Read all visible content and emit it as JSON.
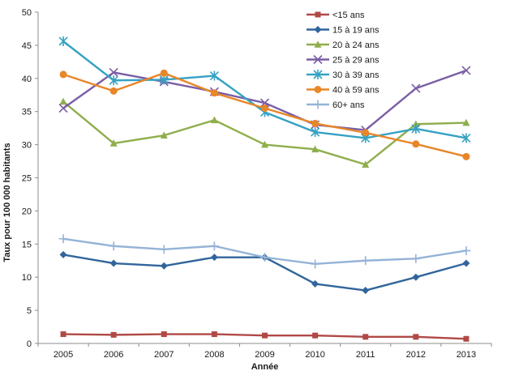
{
  "chart_data": {
    "type": "line",
    "title": "",
    "xlabel": "Année",
    "ylabel": "Taux pour 100 000 habitants",
    "x": [
      2005,
      2006,
      2007,
      2008,
      2009,
      2010,
      2011,
      2012,
      2013
    ],
    "ylim": [
      0,
      50
    ],
    "ytick_step": 5,
    "grid": false,
    "legend_position": "top-right",
    "axis_color": "#8c8c8c",
    "series": [
      {
        "name": "<15 ans",
        "color": "#b04946",
        "marker": "square",
        "values": [
          1.4,
          1.3,
          1.4,
          1.4,
          1.2,
          1.2,
          1.0,
          1.0,
          0.7
        ]
      },
      {
        "name": "15 à 19 ans",
        "color": "#31659c",
        "marker": "diamond",
        "values": [
          13.4,
          12.1,
          11.7,
          13.0,
          13.0,
          9.0,
          8.0,
          10.0,
          12.1
        ]
      },
      {
        "name": "20 à 24 ans",
        "color": "#8fae4c",
        "marker": "triangle",
        "values": [
          36.5,
          30.2,
          31.4,
          33.7,
          30.0,
          29.3,
          27.0,
          33.1,
          33.3
        ]
      },
      {
        "name": "25 à 29 ans",
        "color": "#7a5da4",
        "marker": "x",
        "values": [
          35.5,
          40.9,
          39.5,
          38.0,
          36.3,
          33.0,
          32.2,
          38.5,
          41.2
        ]
      },
      {
        "name": "30 à 39 ans",
        "color": "#35a2c3",
        "marker": "star",
        "values": [
          45.6,
          39.7,
          39.8,
          40.4,
          34.9,
          31.9,
          31.0,
          32.4,
          31.0
        ]
      },
      {
        "name": "40 à 59 ans",
        "color": "#e88628",
        "marker": "circle",
        "values": [
          40.6,
          38.1,
          40.8,
          37.8,
          35.5,
          33.2,
          31.8,
          30.1,
          28.2
        ]
      },
      {
        "name": "60+ ans",
        "color": "#95b3d7",
        "marker": "plus",
        "values": [
          15.8,
          14.7,
          14.2,
          14.7,
          13.0,
          12.0,
          12.5,
          12.8,
          14.0
        ]
      }
    ]
  }
}
